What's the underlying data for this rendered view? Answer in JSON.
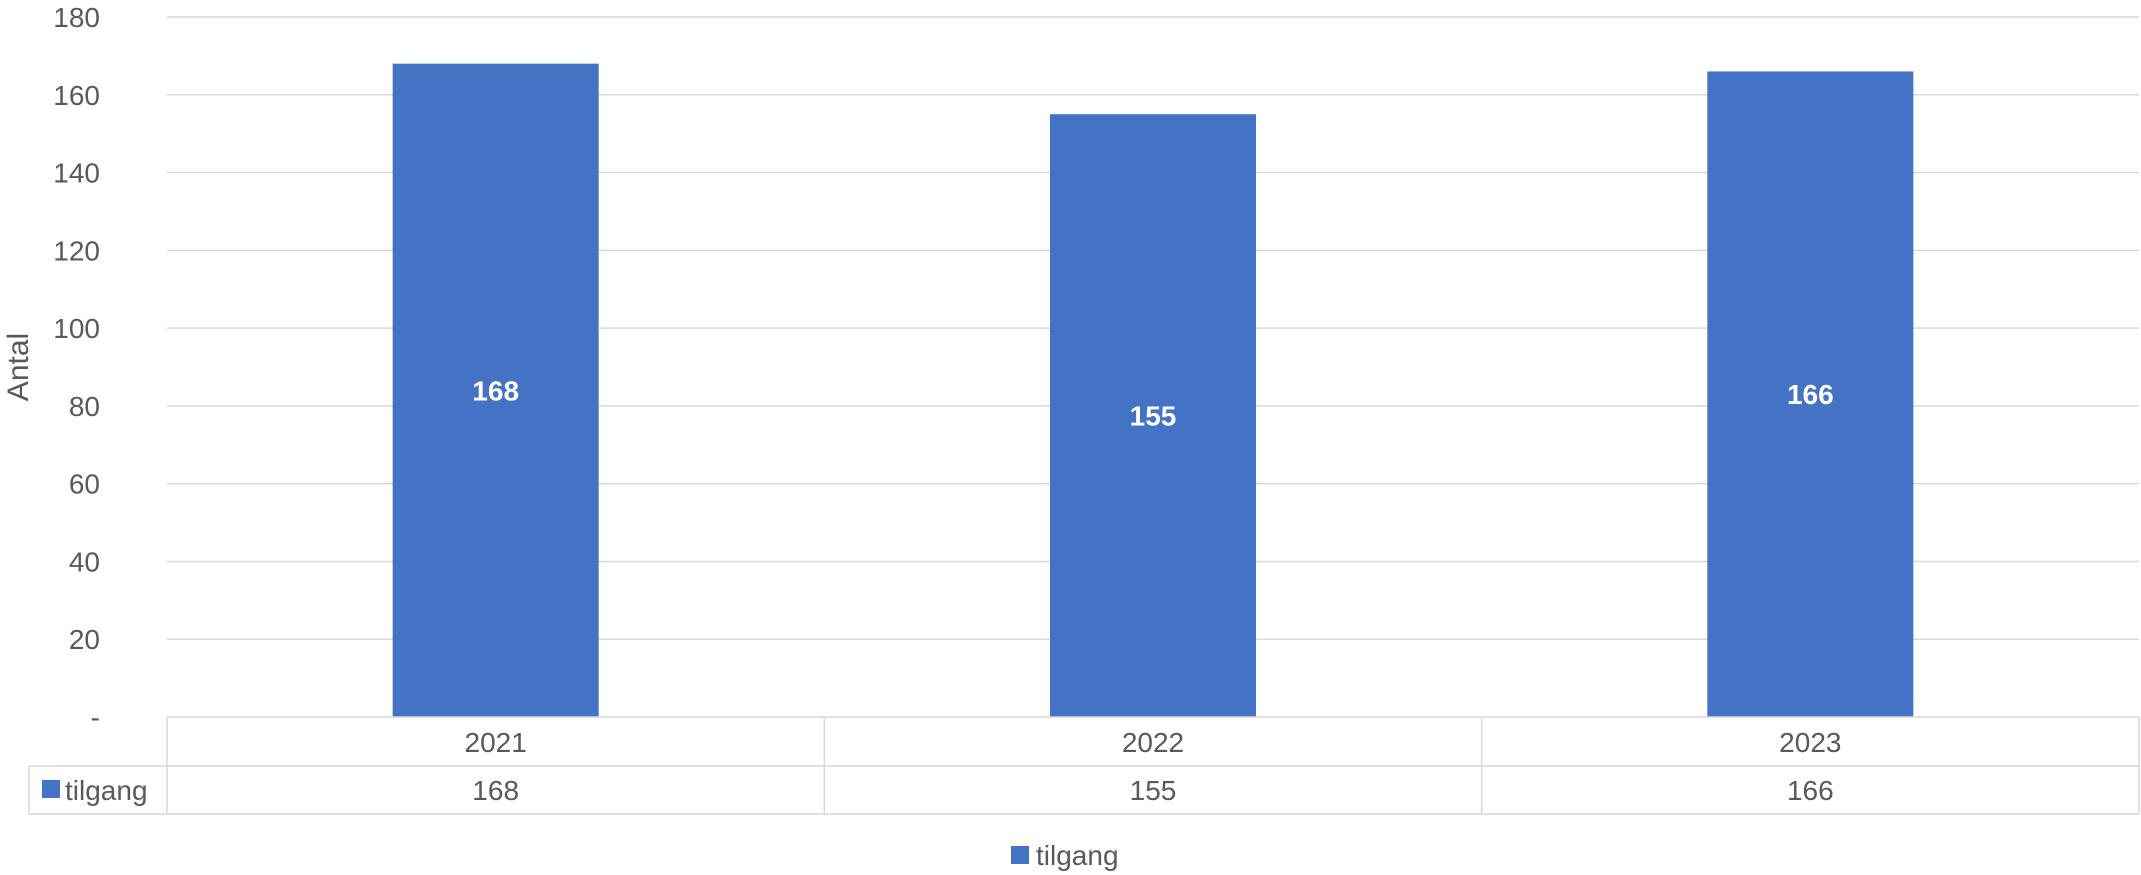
{
  "chart_data": {
    "type": "bar",
    "ylabel": "Antal",
    "ylim": [
      0,
      180
    ],
    "yticks": [
      {
        "value": 0,
        "label": "-"
      },
      {
        "value": 20,
        "label": "20"
      },
      {
        "value": 40,
        "label": "40"
      },
      {
        "value": 60,
        "label": "60"
      },
      {
        "value": 80,
        "label": "80"
      },
      {
        "value": 100,
        "label": "100"
      },
      {
        "value": 120,
        "label": "120"
      },
      {
        "value": 140,
        "label": "140"
      },
      {
        "value": 160,
        "label": "160"
      },
      {
        "value": 180,
        "label": "180"
      }
    ],
    "grid": true,
    "categories": [
      "2021",
      "2022",
      "2023"
    ],
    "series": [
      {
        "name": "tilgang",
        "values": [
          168,
          155,
          166
        ],
        "data_labels": [
          "168",
          "155",
          "166"
        ],
        "color": "#4472c4"
      }
    ],
    "data_table": {
      "rows": [
        {
          "name": "tilgang",
          "values": [
            "168",
            "155",
            "166"
          ]
        }
      ]
    },
    "legend": {
      "position": "bottom",
      "entries": [
        "tilgang"
      ]
    }
  }
}
